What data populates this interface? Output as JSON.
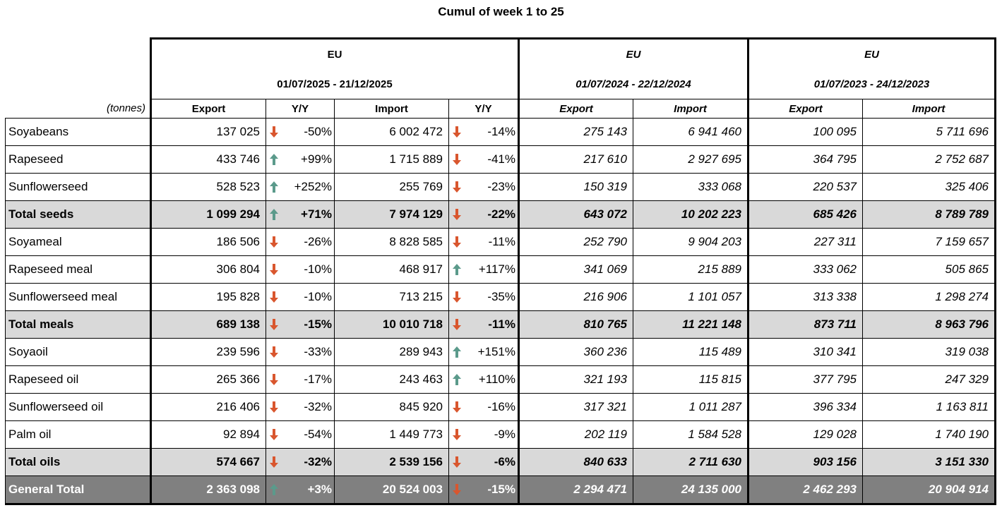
{
  "title": "Cumul of week 1 to 25",
  "unit_label": "(tonnes)",
  "groups": [
    {
      "name": "EU",
      "period": "01/07/2025 - 21/12/2025"
    },
    {
      "name": "EU",
      "period": "01/07/2024 - 22/12/2024"
    },
    {
      "name": "EU",
      "period": "01/07/2023 - 24/12/2023"
    }
  ],
  "columns": [
    "Export",
    "Y/Y",
    "Import",
    "Y/Y",
    "Export",
    "Import",
    "Export",
    "Import"
  ],
  "colors": {
    "up": "#5b9a8b",
    "down": "#d9562e",
    "total_bg": "#d9d9d9",
    "general_bg": "#808080"
  },
  "rows": [
    {
      "label": "Soyabeans",
      "kind": "item",
      "exp25": "137 025",
      "exp_yy": "-50%",
      "exp_dir": "down",
      "imp25": "6 002 472",
      "imp_yy": "-14%",
      "imp_dir": "down",
      "exp24": "275 143",
      "imp24": "6 941 460",
      "exp23": "100 095",
      "imp23": "5 711 696"
    },
    {
      "label": "Rapeseed",
      "kind": "item",
      "exp25": "433 746",
      "exp_yy": "+99%",
      "exp_dir": "up",
      "imp25": "1 715 889",
      "imp_yy": "-41%",
      "imp_dir": "down",
      "exp24": "217 610",
      "imp24": "2 927 695",
      "exp23": "364 795",
      "imp23": "2 752 687"
    },
    {
      "label": "Sunflowerseed",
      "kind": "item",
      "exp25": "528 523",
      "exp_yy": "+252%",
      "exp_dir": "up",
      "imp25": "255 769",
      "imp_yy": "-23%",
      "imp_dir": "down",
      "exp24": "150 319",
      "imp24": "333 068",
      "exp23": "220 537",
      "imp23": "325 406"
    },
    {
      "label": "Total seeds",
      "kind": "total",
      "exp25": "1 099 294",
      "exp_yy": "+71%",
      "exp_dir": "up",
      "imp25": "7 974 129",
      "imp_yy": "-22%",
      "imp_dir": "down",
      "exp24": "643 072",
      "imp24": "10 202 223",
      "exp23": "685 426",
      "imp23": "8 789 789"
    },
    {
      "label": "Soyameal",
      "kind": "item",
      "exp25": "186 506",
      "exp_yy": "-26%",
      "exp_dir": "down",
      "imp25": "8 828 585",
      "imp_yy": "-11%",
      "imp_dir": "down",
      "exp24": "252 790",
      "imp24": "9 904 203",
      "exp23": "227 311",
      "imp23": "7 159 657"
    },
    {
      "label": "Rapeseed meal",
      "kind": "item",
      "exp25": "306 804",
      "exp_yy": "-10%",
      "exp_dir": "down",
      "imp25": "468 917",
      "imp_yy": "+117%",
      "imp_dir": "up",
      "exp24": "341 069",
      "imp24": "215 889",
      "exp23": "333 062",
      "imp23": "505 865"
    },
    {
      "label": "Sunflowerseed meal",
      "kind": "item",
      "exp25": "195 828",
      "exp_yy": "-10%",
      "exp_dir": "down",
      "imp25": "713 215",
      "imp_yy": "-35%",
      "imp_dir": "down",
      "exp24": "216 906",
      "imp24": "1 101 057",
      "exp23": "313 338",
      "imp23": "1 298 274"
    },
    {
      "label": "Total meals",
      "kind": "total",
      "exp25": "689 138",
      "exp_yy": "-15%",
      "exp_dir": "down",
      "imp25": "10 010 718",
      "imp_yy": "-11%",
      "imp_dir": "down",
      "exp24": "810 765",
      "imp24": "11 221 148",
      "exp23": "873 711",
      "imp23": "8 963 796"
    },
    {
      "label": "Soyaoil",
      "kind": "item",
      "exp25": "239 596",
      "exp_yy": "-33%",
      "exp_dir": "down",
      "imp25": "289 943",
      "imp_yy": "+151%",
      "imp_dir": "up",
      "exp24": "360 236",
      "imp24": "115 489",
      "exp23": "310 341",
      "imp23": "319 038"
    },
    {
      "label": "Rapeseed oil",
      "kind": "item",
      "exp25": "265 366",
      "exp_yy": "-17%",
      "exp_dir": "down",
      "imp25": "243 463",
      "imp_yy": "+110%",
      "imp_dir": "up",
      "exp24": "321 193",
      "imp24": "115 815",
      "exp23": "377 795",
      "imp23": "247 329"
    },
    {
      "label": "Sunflowerseed oil",
      "kind": "item",
      "exp25": "216 406",
      "exp_yy": "-32%",
      "exp_dir": "down",
      "imp25": "845 920",
      "imp_yy": "-16%",
      "imp_dir": "down",
      "exp24": "317 321",
      "imp24": "1 011 287",
      "exp23": "396 334",
      "imp23": "1 163 811"
    },
    {
      "label": "Palm oil",
      "kind": "item",
      "exp25": "92 894",
      "exp_yy": "-54%",
      "exp_dir": "down",
      "imp25": "1 449 773",
      "imp_yy": "-9%",
      "imp_dir": "down",
      "exp24": "202 119",
      "imp24": "1 584 528",
      "exp23": "129 028",
      "imp23": "1 740 190"
    },
    {
      "label": "Total oils",
      "kind": "total",
      "exp25": "574 667",
      "exp_yy": "-32%",
      "exp_dir": "down",
      "imp25": "2 539 156",
      "imp_yy": "-6%",
      "imp_dir": "down",
      "exp24": "840 633",
      "imp24": "2 711 630",
      "exp23": "903 156",
      "imp23": "3 151 330"
    },
    {
      "label": "General Total",
      "kind": "general",
      "exp25": "2 363 098",
      "exp_yy": "+3%",
      "exp_dir": "up",
      "imp25": "20 524 003",
      "imp_yy": "-15%",
      "imp_dir": "down",
      "exp24": "2 294 471",
      "imp24": "24 135 000",
      "exp23": "2 462 293",
      "imp23": "20 904 914"
    }
  ]
}
